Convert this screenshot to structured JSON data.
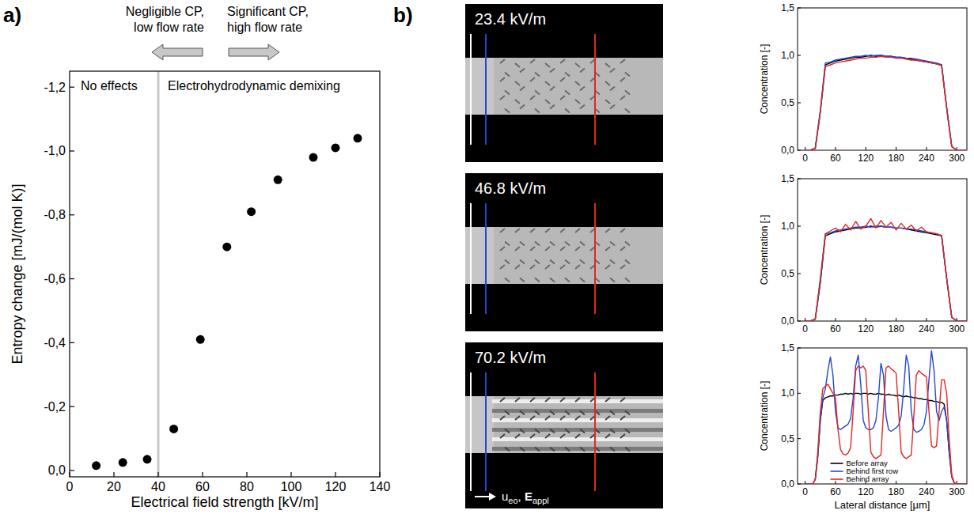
{
  "chart_data": [
    {
      "type": "scatter",
      "x": [
        12,
        24,
        35,
        47,
        59,
        71,
        82,
        94,
        110,
        120,
        130
      ],
      "series": [
        {
          "color": "#000000",
          "marker": "circle",
          "values": [
            -0.015,
            -0.025,
            -0.035,
            -0.13,
            -0.41,
            -0.7,
            -0.81,
            -0.91,
            -0.98,
            -1.01,
            -1.04
          ]
        }
      ],
      "xlim": [
        0,
        140
      ],
      "ylim": [
        0.02,
        -1.25
      ],
      "xticks": [
        0,
        20,
        40,
        60,
        80,
        100,
        120,
        140
      ],
      "yticks": [
        {
          "value": 0,
          "label": "0,0"
        },
        {
          "value": -0.2,
          "label": "-0,2"
        },
        {
          "value": -0.4,
          "label": "-0,4"
        },
        {
          "value": -0.6,
          "label": "-0,6"
        },
        {
          "value": -0.8,
          "label": "-0,8"
        },
        {
          "value": -1.0,
          "label": "-1,0"
        },
        {
          "value": -1.2,
          "label": "-1,2"
        }
      ],
      "x_label": "Electrical field strength   [kV/m]",
      "y_label": "Entropy change   [mJ/(mol K)]",
      "annotations": {
        "left_note": [
          "Negligible CP,",
          "low flow rate"
        ],
        "right_note": [
          "Significant CP,",
          "high flow rate"
        ],
        "left_region": "No effects",
        "right_region": "Electrohydrodynamic demixing",
        "divider_x": 40
      }
    },
    {
      "type": "line",
      "x": [
        0,
        10,
        20,
        30,
        40,
        50,
        60,
        70,
        80,
        90,
        100,
        110,
        120,
        130,
        140,
        150,
        160,
        170,
        180,
        190,
        200,
        210,
        220,
        230,
        240,
        250,
        260,
        270,
        280,
        290,
        300,
        310,
        320
      ],
      "series": [
        {
          "color": "#000000",
          "values": [
            0,
            0,
            0.02,
            0.4,
            0.9,
            0.92,
            0.94,
            0.95,
            0.96,
            0.97,
            0.98,
            0.98,
            0.99,
            1.0,
            0.99,
            1.0,
            0.99,
            0.99,
            0.98,
            0.98,
            0.97,
            0.96,
            0.95,
            0.94,
            0.93,
            0.92,
            0.91,
            0.9,
            0.45,
            0.04,
            0,
            0,
            0
          ]
        },
        {
          "color": "#2346d6",
          "values": [
            0,
            0,
            0.02,
            0.42,
            0.92,
            0.93,
            0.95,
            0.96,
            0.97,
            0.98,
            0.99,
            0.99,
            1.0,
            0.99,
            1.0,
            1.0,
            0.99,
            0.99,
            0.98,
            0.98,
            0.97,
            0.97,
            0.96,
            0.95,
            0.94,
            0.93,
            0.92,
            0.9,
            0.45,
            0.04,
            0,
            0,
            0
          ]
        },
        {
          "color": "#e3261f",
          "values": [
            0,
            0,
            0.02,
            0.4,
            0.88,
            0.9,
            0.92,
            0.93,
            0.94,
            0.95,
            0.96,
            0.97,
            0.97,
            0.98,
            0.98,
            0.99,
            0.98,
            0.98,
            0.97,
            0.97,
            0.96,
            0.95,
            0.95,
            0.94,
            0.93,
            0.92,
            0.91,
            0.89,
            0.44,
            0.04,
            0,
            0,
            0
          ]
        }
      ],
      "xlim": [
        -15,
        320
      ],
      "ylim": [
        0,
        1.5
      ],
      "xticks": [
        0,
        60,
        120,
        180,
        240,
        300
      ],
      "yticks": [
        {
          "value": 0,
          "label": "0,0"
        },
        {
          "value": 0.5,
          "label": "0,5"
        },
        {
          "value": 1.0,
          "label": "1,0"
        },
        {
          "value": 1.5,
          "label": "1,5"
        }
      ],
      "y_label": "Concentration  [-]"
    },
    {
      "type": "line",
      "x": [
        0,
        10,
        20,
        30,
        40,
        50,
        60,
        70,
        80,
        90,
        100,
        110,
        120,
        130,
        140,
        150,
        160,
        170,
        180,
        190,
        200,
        210,
        220,
        230,
        240,
        250,
        260,
        270,
        280,
        290,
        300,
        310,
        320
      ],
      "series": [
        {
          "color": "#000000",
          "values": [
            0,
            0,
            0.02,
            0.4,
            0.9,
            0.92,
            0.94,
            0.95,
            0.96,
            0.97,
            0.98,
            0.98,
            0.99,
            1.0,
            0.99,
            1.0,
            0.99,
            0.99,
            0.98,
            0.98,
            0.97,
            0.96,
            0.95,
            0.94,
            0.93,
            0.92,
            0.91,
            0.9,
            0.45,
            0.04,
            0,
            0,
            0
          ]
        },
        {
          "color": "#2346d6",
          "values": [
            0,
            0,
            0.02,
            0.42,
            0.92,
            0.93,
            0.95,
            0.96,
            0.97,
            0.98,
            0.99,
            0.99,
            1.0,
            0.99,
            1.0,
            1.0,
            0.99,
            0.99,
            0.98,
            0.98,
            0.97,
            0.97,
            0.96,
            0.95,
            0.94,
            0.93,
            0.92,
            0.9,
            0.45,
            0.04,
            0,
            0,
            0
          ]
        },
        {
          "color": "#e3261f",
          "values": [
            0,
            0,
            0.02,
            0.45,
            0.92,
            0.95,
            0.98,
            0.94,
            1.02,
            0.96,
            1.05,
            0.97,
            1.0,
            1.08,
            0.98,
            1.06,
            0.99,
            1.04,
            0.96,
            1.03,
            0.97,
            1.01,
            0.95,
            0.99,
            0.94,
            0.93,
            0.92,
            0.9,
            0.45,
            0.04,
            0,
            0,
            0
          ]
        }
      ],
      "xlim": [
        -15,
        320
      ],
      "ylim": [
        0,
        1.5
      ],
      "xticks": [
        0,
        60,
        120,
        180,
        240,
        300
      ],
      "yticks": [
        {
          "value": 0,
          "label": "0,0"
        },
        {
          "value": 0.5,
          "label": "0,5"
        },
        {
          "value": 1.0,
          "label": "1,0"
        },
        {
          "value": 1.5,
          "label": "1,5"
        }
      ],
      "y_label": "Concentration  [-]"
    },
    {
      "type": "line",
      "x": [
        0,
        5,
        10,
        15,
        20,
        25,
        30,
        35,
        40,
        45,
        50,
        55,
        60,
        65,
        70,
        75,
        80,
        85,
        90,
        95,
        100,
        105,
        110,
        115,
        120,
        125,
        130,
        135,
        140,
        145,
        150,
        155,
        160,
        165,
        170,
        175,
        180,
        185,
        190,
        195,
        200,
        205,
        210,
        215,
        220,
        225,
        230,
        235,
        240,
        245,
        250,
        255,
        260,
        265,
        270,
        275,
        280,
        285,
        290,
        295,
        300,
        305,
        310,
        315,
        320
      ],
      "series": [
        {
          "name": "Before array",
          "color": "#000000",
          "values": [
            0,
            0,
            0,
            0,
            0.05,
            0.3,
            0.7,
            0.92,
            0.95,
            0.96,
            0.97,
            0.97,
            0.98,
            0.98,
            0.99,
            0.99,
            1.0,
            0.99,
            1.0,
            0.99,
            1.0,
            1.0,
            0.99,
            1.0,
            1.0,
            0.99,
            1.0,
            0.99,
            0.99,
            1.0,
            0.99,
            0.99,
            0.98,
            0.99,
            0.98,
            0.98,
            0.97,
            0.98,
            0.97,
            0.96,
            0.97,
            0.96,
            0.96,
            0.95,
            0.95,
            0.94,
            0.94,
            0.93,
            0.93,
            0.92,
            0.92,
            0.91,
            0.91,
            0.9,
            0.9,
            0.88,
            0.7,
            0.35,
            0.08,
            0.01,
            0,
            0,
            0,
            0,
            0
          ]
        },
        {
          "name": "Behind first row",
          "color": "#2346d6",
          "values": [
            0,
            0,
            0,
            0,
            0.05,
            0.3,
            0.7,
            0.95,
            1.05,
            1.25,
            1.4,
            1.2,
            0.8,
            0.62,
            0.6,
            0.62,
            0.64,
            0.66,
            0.72,
            0.95,
            1.3,
            1.42,
            1.1,
            0.7,
            0.62,
            0.6,
            0.6,
            0.62,
            0.7,
            0.95,
            1.33,
            1.2,
            0.75,
            0.6,
            0.58,
            0.6,
            0.62,
            0.65,
            0.75,
            1.05,
            1.42,
            1.3,
            0.8,
            0.6,
            0.57,
            0.58,
            0.6,
            0.65,
            0.8,
            1.15,
            1.47,
            1.25,
            0.8,
            0.7,
            0.8,
            0.85,
            0.7,
            0.35,
            0.08,
            0.01,
            0,
            0,
            0,
            0,
            0
          ]
        },
        {
          "name": "Behind array",
          "color": "#e3261f",
          "values": [
            0,
            0,
            0,
            0,
            0.05,
            0.35,
            0.8,
            1.05,
            1.08,
            1.1,
            1.05,
            1.0,
            0.95,
            0.6,
            0.38,
            0.33,
            0.32,
            0.34,
            0.4,
            0.8,
            1.25,
            1.3,
            1.28,
            1.3,
            1.25,
            0.8,
            0.35,
            0.3,
            0.28,
            0.3,
            0.32,
            0.8,
            1.28,
            1.3,
            1.27,
            1.25,
            1.22,
            0.8,
            0.35,
            0.3,
            0.28,
            0.3,
            0.32,
            0.75,
            1.2,
            1.25,
            1.22,
            1.2,
            1.18,
            0.8,
            0.42,
            0.4,
            0.42,
            0.8,
            1.15,
            1.15,
            1.0,
            0.5,
            0.1,
            0.01,
            0,
            0,
            0,
            0,
            0
          ]
        }
      ],
      "xlim": [
        -15,
        320
      ],
      "ylim": [
        0,
        1.5
      ],
      "xticks": [
        0,
        60,
        120,
        180,
        240,
        300
      ],
      "yticks": [
        {
          "value": 0,
          "label": "0,0"
        },
        {
          "value": 0.5,
          "label": "0,5"
        },
        {
          "value": 1.0,
          "label": "1,0"
        },
        {
          "value": 1.5,
          "label": "1,5"
        }
      ],
      "y_label": "Concentration  [-]",
      "x_label": "Lateral distance  [µm]",
      "legend": "bottom"
    }
  ],
  "figure": {
    "panel_labels": [
      "a)",
      "b)"
    ],
    "images": [
      {
        "label": "23.4 kV/m"
      },
      {
        "label": "46.8 kV/m"
      },
      {
        "label": "70.2 kV/m"
      }
    ],
    "flow_label": {
      "u": "u",
      "u_sub": "eo",
      "separator": ", ",
      "e": "E",
      "e_sub": "appl"
    }
  }
}
